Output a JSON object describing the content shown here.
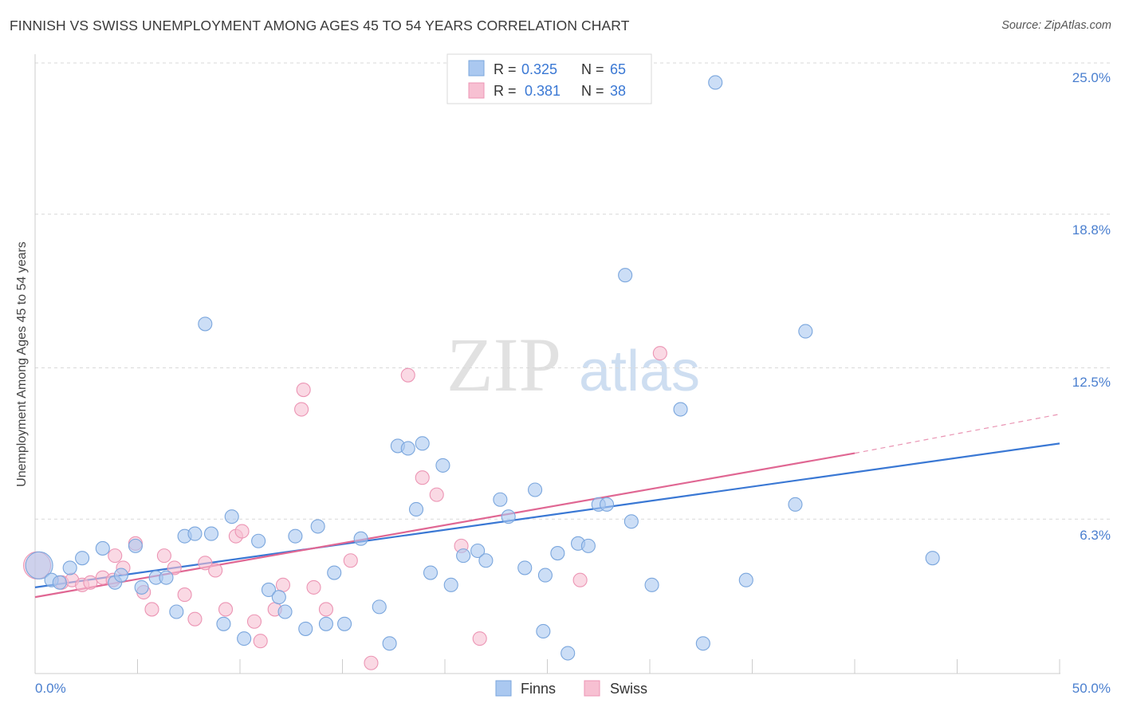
{
  "title": "FINNISH VS SWISS UNEMPLOYMENT AMONG AGES 45 TO 54 YEARS CORRELATION CHART",
  "source": "Source: ZipAtlas.com",
  "watermark": {
    "zip": "ZIP",
    "atlas": "atlas"
  },
  "colors": {
    "finns_fill": "#aac8f0",
    "finns_stroke": "#7aa6dd",
    "finns_line": "#3a78d4",
    "swiss_fill": "#f7c0d2",
    "swiss_stroke": "#ec95b4",
    "swiss_line": "#e06793",
    "tick_label": "#4a7fcf",
    "grid": "#d9d9d9",
    "axis": "#cccccc"
  },
  "legend": {
    "rows": [
      {
        "r_label": "R =",
        "r_value": "0.325",
        "n_label": "N =",
        "n_value": "65"
      },
      {
        "r_label": "R =",
        "r_value": "0.381",
        "n_label": "N =",
        "n_value": "38"
      }
    ]
  },
  "bottom_legend": {
    "finns": "Finns",
    "swiss": "Swiss"
  },
  "chart_data": {
    "type": "scatter",
    "title": "FINNISH VS SWISS UNEMPLOYMENT AMONG AGES 45 TO 54 YEARS CORRELATION CHART",
    "xlabel": "",
    "ylabel": "Unemployment Among Ages 45 to 54 years",
    "xlim": [
      0,
      50
    ],
    "ylim": [
      0,
      26.3
    ],
    "x_tick_labels": [
      "0.0%",
      "50.0%"
    ],
    "y_ticks": [
      6.3,
      12.5,
      18.8,
      25.0
    ],
    "y_tick_labels": [
      "6.3%",
      "12.5%",
      "18.8%",
      "25.0%"
    ],
    "grid": true,
    "legend_position": "top-center",
    "series": [
      {
        "name": "Finns",
        "r": 0.325,
        "n": 65,
        "trend": {
          "x": [
            0,
            50
          ],
          "y": [
            3.5,
            9.4
          ]
        },
        "points": [
          [
            0.2,
            4.4
          ],
          [
            0.8,
            3.8
          ],
          [
            1.2,
            3.7
          ],
          [
            1.7,
            4.3
          ],
          [
            2.3,
            4.7
          ],
          [
            3.3,
            5.1
          ],
          [
            3.9,
            3.7
          ],
          [
            4.2,
            4.0
          ],
          [
            4.9,
            5.2
          ],
          [
            5.2,
            3.5
          ],
          [
            5.9,
            3.9
          ],
          [
            6.4,
            3.9
          ],
          [
            6.9,
            2.5
          ],
          [
            7.3,
            5.6
          ],
          [
            7.8,
            5.7
          ],
          [
            8.3,
            14.3
          ],
          [
            8.6,
            5.7
          ],
          [
            9.2,
            2.0
          ],
          [
            9.6,
            6.4
          ],
          [
            10.2,
            1.4
          ],
          [
            10.9,
            5.4
          ],
          [
            11.4,
            3.4
          ],
          [
            11.9,
            3.1
          ],
          [
            12.2,
            2.5
          ],
          [
            12.7,
            5.6
          ],
          [
            13.2,
            1.8
          ],
          [
            13.8,
            6.0
          ],
          [
            14.2,
            2.0
          ],
          [
            14.6,
            4.1
          ],
          [
            15.1,
            2.0
          ],
          [
            15.9,
            5.5
          ],
          [
            16.8,
            2.7
          ],
          [
            17.3,
            1.2
          ],
          [
            17.7,
            9.3
          ],
          [
            18.2,
            9.2
          ],
          [
            18.6,
            6.7
          ],
          [
            18.9,
            9.4
          ],
          [
            19.3,
            4.1
          ],
          [
            19.9,
            8.5
          ],
          [
            20.3,
            3.6
          ],
          [
            20.9,
            4.8
          ],
          [
            21.6,
            5.0
          ],
          [
            22.0,
            4.6
          ],
          [
            22.7,
            7.1
          ],
          [
            23.1,
            6.4
          ],
          [
            23.9,
            4.3
          ],
          [
            24.4,
            7.5
          ],
          [
            24.8,
            1.7
          ],
          [
            24.9,
            4.0
          ],
          [
            25.5,
            4.9
          ],
          [
            26.0,
            0.8
          ],
          [
            26.5,
            5.3
          ],
          [
            27.0,
            5.2
          ],
          [
            27.5,
            6.9
          ],
          [
            27.9,
            6.9
          ],
          [
            28.8,
            16.3
          ],
          [
            29.1,
            6.2
          ],
          [
            30.1,
            3.6
          ],
          [
            31.5,
            10.8
          ],
          [
            32.6,
            1.2
          ],
          [
            33.2,
            24.2
          ],
          [
            34.7,
            3.8
          ],
          [
            37.1,
            6.9
          ],
          [
            37.6,
            14.0
          ],
          [
            43.8,
            4.7
          ]
        ]
      },
      {
        "name": "Swiss",
        "r": 0.381,
        "n": 38,
        "trend": {
          "x": [
            0,
            40
          ],
          "y": [
            3.1,
            9.0
          ],
          "dashed_to": {
            "x": 50,
            "y": 10.6
          }
        },
        "points": [
          [
            0.1,
            4.4
          ],
          [
            1.3,
            3.7
          ],
          [
            1.8,
            3.8
          ],
          [
            2.3,
            3.6
          ],
          [
            2.7,
            3.7
          ],
          [
            3.3,
            3.9
          ],
          [
            3.8,
            3.8
          ],
          [
            3.9,
            4.8
          ],
          [
            4.3,
            4.3
          ],
          [
            4.9,
            5.3
          ],
          [
            5.3,
            3.3
          ],
          [
            5.7,
            2.6
          ],
          [
            6.3,
            4.8
          ],
          [
            6.8,
            4.3
          ],
          [
            7.3,
            3.2
          ],
          [
            7.8,
            2.2
          ],
          [
            8.3,
            4.5
          ],
          [
            8.8,
            4.2
          ],
          [
            9.3,
            2.6
          ],
          [
            9.8,
            5.6
          ],
          [
            10.1,
            5.8
          ],
          [
            10.7,
            2.1
          ],
          [
            11.0,
            1.3
          ],
          [
            11.7,
            2.6
          ],
          [
            12.1,
            3.6
          ],
          [
            13.0,
            10.8
          ],
          [
            13.1,
            11.6
          ],
          [
            13.6,
            3.5
          ],
          [
            14.2,
            2.6
          ],
          [
            15.4,
            4.6
          ],
          [
            16.4,
            0.4
          ],
          [
            18.2,
            12.2
          ],
          [
            18.9,
            8.0
          ],
          [
            19.6,
            7.3
          ],
          [
            20.8,
            5.2
          ],
          [
            21.7,
            1.4
          ],
          [
            26.6,
            3.8
          ],
          [
            30.5,
            13.1
          ]
        ]
      }
    ]
  }
}
